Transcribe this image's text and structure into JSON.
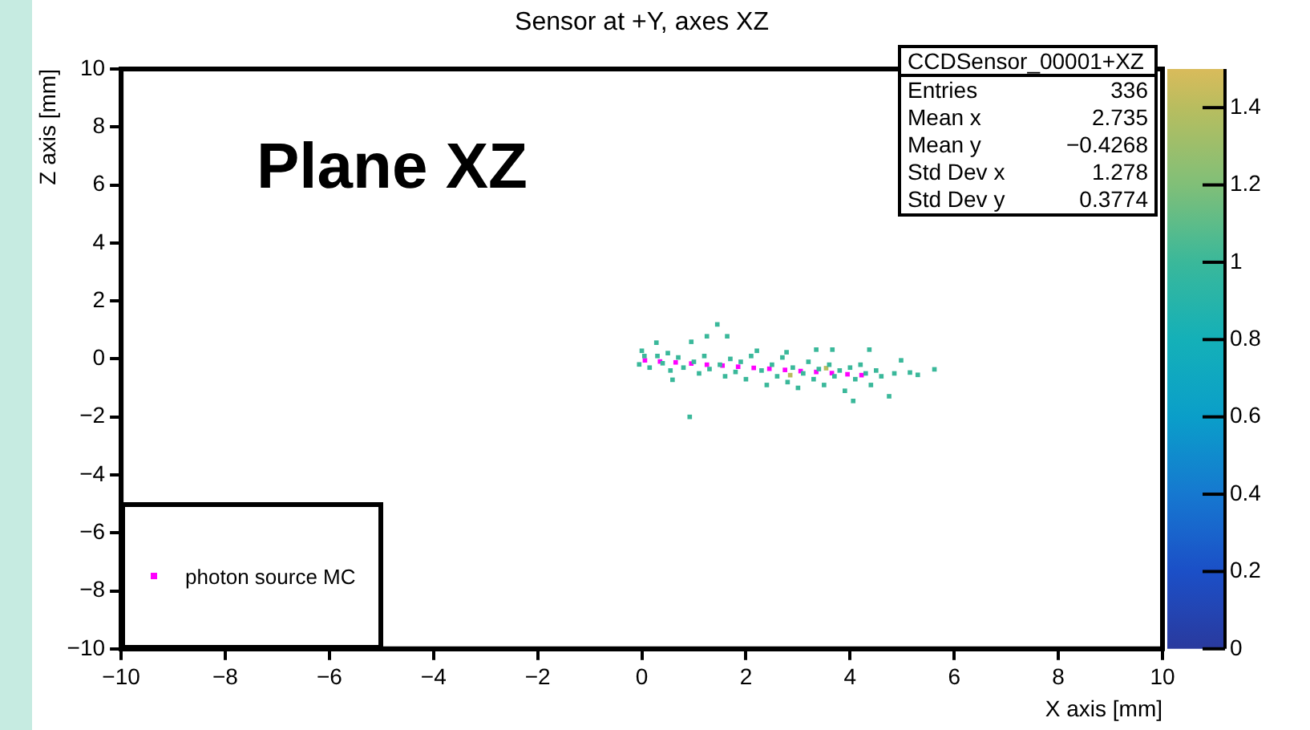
{
  "chart_data": {
    "type": "scatter",
    "title": "Sensor at +Y, axes XZ",
    "xlabel": "X axis [mm]",
    "ylabel": "Z axis [mm]",
    "xlim": [
      -10,
      10
    ],
    "xticks": [
      -10,
      -8,
      -6,
      -4,
      -2,
      0,
      2,
      4,
      6,
      8,
      10
    ],
    "ylim": [
      -10,
      10
    ],
    "yticks": [
      -10,
      -8,
      -6,
      -4,
      -2,
      0,
      2,
      4,
      6,
      8,
      10
    ],
    "clim": [
      0,
      1.5
    ],
    "cticks": [
      0,
      0.2,
      0.4,
      0.6,
      0.8,
      1,
      1.2,
      1.4
    ],
    "marker": "square",
    "legend": "bottom left",
    "annotations": [
      "Plane XZ",
      "CCDSensor_00001+XZ",
      "Entries",
      "336",
      "Mean x",
      "2.735",
      "Mean y",
      "−0.4268",
      "Std Dev x",
      "1.278",
      "Std Dev y",
      "0.3774"
    ],
    "series": [
      {
        "type": "scatter",
        "x": [
          0,
          -0.05,
          0.05,
          0.15,
          0.28,
          0.3,
          0.4,
          0.5,
          0.55,
          0.59,
          0.7,
          0.8,
          0.92,
          0.95,
          1.0,
          1.1,
          1.2,
          1.25,
          1.3,
          1.45,
          1.5,
          1.6,
          1.64,
          1.7,
          1.8,
          1.9,
          2.0,
          2.1,
          2.21,
          2.3,
          2.4,
          2.5,
          2.6,
          2.7,
          2.78,
          2.8,
          2.9,
          3.0,
          3.1,
          3.2,
          3.3,
          3.35,
          3.4,
          3.5,
          3.6,
          3.66,
          3.7,
          3.8,
          3.9,
          4.0,
          4.06,
          4.1,
          4.2,
          4.3,
          4.37,
          4.4,
          4.5,
          4.6,
          4.75,
          4.85,
          4.98,
          5.15,
          5.3,
          5.62
        ],
        "values": [
          0.28,
          -0.19,
          0.1,
          -0.3,
          0.56,
          0.1,
          -0.15,
          0.2,
          -0.4,
          -0.72,
          0.05,
          -0.3,
          -2.0,
          0.59,
          -0.1,
          -0.5,
          0.1,
          0.78,
          -0.35,
          1.19,
          -0.2,
          -0.6,
          0.78,
          0.0,
          -0.45,
          -0.1,
          -0.7,
          0.1,
          0.28,
          -0.4,
          -0.9,
          -0.2,
          -0.6,
          0.05,
          0.23,
          -0.8,
          -0.3,
          -1.0,
          -0.5,
          -0.1,
          -0.7,
          0.32,
          -0.35,
          -0.9,
          -0.2,
          0.32,
          -0.6,
          -0.4,
          -1.1,
          -0.3,
          -1.45,
          -0.7,
          -0.2,
          -0.5,
          0.32,
          -0.9,
          -0.4,
          -0.6,
          -1.29,
          -0.5,
          -0.05,
          -0.47,
          -0.55,
          -0.36
        ],
        "cvalues": [
          1,
          1,
          1,
          1,
          1,
          1,
          1,
          1,
          1,
          1,
          1,
          1,
          1,
          1,
          1,
          1,
          1,
          1,
          1,
          1,
          1,
          1,
          1,
          1,
          1,
          1,
          1,
          1,
          1,
          1,
          1,
          1,
          1,
          1,
          1,
          1,
          1,
          1,
          1,
          1,
          1,
          1,
          1,
          1,
          1,
          1,
          1,
          1,
          1,
          1,
          1,
          1,
          1,
          1,
          1,
          1,
          1,
          1,
          1,
          1,
          1,
          1,
          1,
          1
        ]
      },
      {
        "type": "scatter",
        "x": [
          2.85,
          3.54
        ],
        "values": [
          -0.56,
          -0.32
        ],
        "cvalues": [
          1.4,
          1.4
        ]
      },
      {
        "type": "scatter",
        "name": "photon source MC",
        "color": "#ff00ff",
        "x": [
          0.06,
          0.35,
          0.65,
          0.95,
          1.25,
          1.55,
          1.85,
          2.15,
          2.45,
          2.75,
          3.05,
          3.35,
          3.65,
          3.95,
          4.22
        ],
        "values": [
          -0.05,
          -0.09,
          -0.12,
          -0.16,
          -0.2,
          -0.23,
          -0.27,
          -0.31,
          -0.34,
          -0.38,
          -0.42,
          -0.45,
          -0.49,
          -0.53,
          -0.56
        ]
      }
    ]
  }
}
